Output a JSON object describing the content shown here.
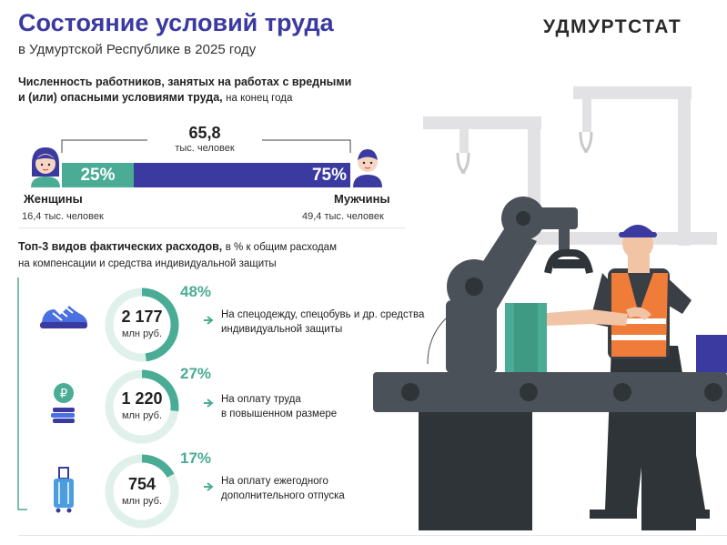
{
  "header": {
    "title": "Состояние условий труда",
    "subtitle": "в Удмуртской Республике в 2025 году",
    "brand": "УДМУРТСТАТ"
  },
  "workers": {
    "heading_bold_1": "Численность работников, занятых на работах с вредными",
    "heading_bold_2": "и (или) опасными условиями труда,",
    "heading_note": "на конец года",
    "total_value": "65,8",
    "total_unit": "тыс. человек",
    "women": {
      "label": "Женщины",
      "value_text": "16,4 тыс. человек",
      "percent_text": "25%",
      "share": 0.25
    },
    "men": {
      "label": "Мужчины",
      "value_text": "49,4 тыс. человек",
      "percent_text": "75%",
      "share": 0.75
    }
  },
  "expenses": {
    "heading_bold": "Топ-3 видов фактических расходов,",
    "heading_note_1": "в % к общим расходам",
    "heading_note_2": "на компенсации и средства индивидуальной защиты",
    "items": [
      {
        "icon": "sneaker-icon",
        "value": "2 177",
        "unit": "млн руб.",
        "percent_text": "48%",
        "share": 0.48,
        "desc_1": "На спецодежду, спецобувь и др. средства",
        "desc_2": "индивидуальной защиты"
      },
      {
        "icon": "coins-icon",
        "value": "1 220",
        "unit": "млн руб.",
        "percent_text": "27%",
        "share": 0.27,
        "desc_1": "На оплату труда",
        "desc_2": "в повышенном размере"
      },
      {
        "icon": "suitcase-icon",
        "value": "754",
        "unit": "млн руб.",
        "percent_text": "17%",
        "share": 0.17,
        "desc_1": "На оплату ежегодного",
        "desc_2": "дополнительного отпуска"
      }
    ]
  },
  "colors": {
    "accent": "#3b3aa0",
    "green": "#4aac94",
    "light_green": "#dff1ea",
    "dark_machine": "#4a5158",
    "vest": "#f07c3a"
  }
}
